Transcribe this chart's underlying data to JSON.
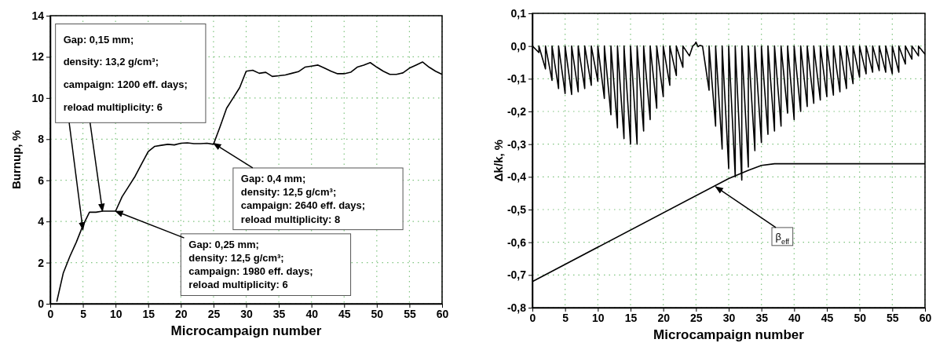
{
  "chart_data": [
    {
      "type": "line",
      "xlabel": "Microcampaign number",
      "ylabel": "Burnup, %",
      "xlim": [
        0,
        60
      ],
      "ylim": [
        0,
        14
      ],
      "xticks": [
        0,
        5,
        10,
        15,
        20,
        25,
        30,
        35,
        40,
        45,
        50,
        55,
        60
      ],
      "yticks": [
        0,
        2,
        4,
        6,
        8,
        10,
        12,
        14
      ],
      "grid": true,
      "marker": "none",
      "line_style": "solid",
      "series": [
        {
          "color": "#000000",
          "x": [
            1,
            2,
            3,
            4,
            5,
            6,
            7,
            8,
            9,
            10,
            11,
            12,
            13,
            14,
            15,
            16,
            17,
            18,
            19,
            20,
            21,
            22,
            23,
            24,
            25,
            26,
            27,
            28,
            29,
            30,
            31,
            32,
            33,
            34,
            35,
            36,
            37,
            38,
            39,
            40,
            41,
            42,
            43,
            44,
            45,
            46,
            47,
            48,
            49,
            50,
            51,
            52,
            53,
            54,
            55,
            56,
            57,
            58,
            59,
            60
          ],
          "values": [
            0.1,
            1.5,
            2.3,
            3.0,
            3.8,
            4.45,
            4.45,
            4.5,
            4.5,
            4.5,
            5.2,
            5.7,
            6.2,
            6.8,
            7.4,
            7.65,
            7.7,
            7.75,
            7.72,
            7.8,
            7.82,
            7.78,
            7.78,
            7.8,
            7.75,
            8.6,
            9.5,
            10.0,
            10.5,
            11.3,
            11.35,
            11.2,
            11.25,
            11.05,
            11.08,
            11.12,
            11.2,
            11.28,
            11.5,
            11.55,
            11.6,
            11.45,
            11.3,
            11.18,
            11.18,
            11.25,
            11.5,
            11.6,
            11.72,
            11.5,
            11.3,
            11.15,
            11.15,
            11.22,
            11.45,
            11.6,
            11.75,
            11.5,
            11.3,
            11.15
          ]
        }
      ],
      "annotations": [
        {
          "text": "Gap: 0,15 mm;\ndensity: 13,2 g/cm³;\ncampaign: 1200 eff. days;\nreload multiplicity: 6",
          "x": 5,
          "y": 3.6
        },
        {
          "text": "Gap: 0,4 mm;\ndensity: 12,5 g/cm³;\ncampaign: 2640 eff. days;\nreload multiplicity: 8",
          "x": 25,
          "y": 7.8
        },
        {
          "text": "Gap: 0,25 mm;\ndensity: 12,5 g/cm³;\ncampaign: 1980 eff. days;\nreload multiplicity: 6",
          "x": 10,
          "y": 4.5
        }
      ]
    },
    {
      "type": "line",
      "xlabel": "Microcampaign number",
      "ylabel": "Δk/k, %",
      "xlim": [
        0,
        60
      ],
      "ylim": [
        -0.8,
        0.1
      ],
      "xticks": [
        0,
        5,
        10,
        15,
        20,
        25,
        30,
        35,
        40,
        45,
        50,
        55,
        60
      ],
      "yticks": [
        {
          "value": -0.8,
          "label": "-0,8"
        },
        {
          "value": -0.7,
          "label": "-0,7"
        },
        {
          "value": -0.6,
          "label": "-0,6"
        },
        {
          "value": -0.5,
          "label": "-0,5"
        },
        {
          "value": -0.4,
          "label": "-0,4"
        },
        {
          "value": -0.3,
          "label": "-0,3"
        },
        {
          "value": -0.2,
          "label": "-0,2"
        },
        {
          "value": -0.1,
          "label": "-0,1"
        },
        {
          "value": 0,
          "label": "0,0"
        },
        {
          "value": 0.1,
          "label": "0,1"
        }
      ],
      "grid": true,
      "marker": "none",
      "line_style": "solid",
      "series": [
        {
          "color": "#000000",
          "x": [
            0,
            1,
            1,
            2,
            2,
            3,
            3,
            4,
            4,
            5,
            5,
            6,
            6,
            7,
            7,
            8,
            8,
            9,
            9,
            10,
            10,
            11,
            11,
            12,
            12,
            13,
            13,
            14,
            14,
            15,
            15,
            16,
            16,
            17,
            17,
            18,
            18,
            19,
            19,
            20,
            20,
            21,
            21,
            22,
            22,
            23,
            23,
            24,
            24.5,
            24.8,
            25,
            25.3,
            25.6,
            26,
            27,
            27,
            28,
            28,
            29,
            29,
            30,
            30,
            31,
            31,
            32,
            32,
            33,
            33,
            34,
            34,
            35,
            35,
            36,
            36,
            37,
            37,
            38,
            38,
            39,
            39,
            40,
            40,
            41,
            41,
            42,
            42,
            43,
            43,
            44,
            44,
            45,
            45,
            46,
            46,
            47,
            47,
            48,
            48,
            49,
            49,
            50,
            50,
            51,
            51,
            52,
            52,
            53,
            53,
            54,
            54,
            55,
            55,
            56,
            56,
            57,
            57,
            58,
            58,
            59,
            59,
            60
          ],
          "values": [
            0,
            -0.02,
            0,
            -0.07,
            0,
            -0.105,
            0,
            -0.13,
            0,
            -0.145,
            0,
            -0.148,
            0,
            -0.14,
            0,
            -0.13,
            0,
            -0.12,
            0,
            -0.108,
            0,
            -0.16,
            0,
            -0.21,
            0,
            -0.25,
            0,
            -0.283,
            0,
            -0.3,
            0,
            -0.3,
            0,
            -0.26,
            0,
            -0.225,
            0,
            -0.19,
            0,
            -0.155,
            0,
            -0.12,
            0,
            -0.09,
            0,
            -0.065,
            0,
            -0.03,
            0,
            0.005,
            0.012,
            -0.002,
            0.002,
            0,
            -0.135,
            0,
            -0.245,
            0,
            -0.315,
            0,
            -0.375,
            0,
            -0.4,
            0,
            -0.41,
            0,
            -0.37,
            0,
            -0.32,
            0,
            -0.295,
            0,
            -0.27,
            0,
            -0.26,
            0,
            -0.245,
            0,
            -0.205,
            0,
            -0.225,
            0,
            -0.2,
            0,
            -0.185,
            0,
            -0.175,
            0,
            -0.165,
            0,
            -0.155,
            0,
            -0.15,
            0,
            -0.14,
            0,
            -0.13,
            0,
            -0.115,
            0,
            -0.095,
            0,
            -0.085,
            0,
            -0.08,
            0,
            -0.075,
            0,
            -0.08,
            0,
            -0.085,
            0,
            -0.08,
            0,
            -0.055,
            0,
            -0.04,
            0,
            -0.03,
            0,
            -0.025
          ]
        },
        {
          "color": "#000000",
          "x": [
            0,
            30,
            33,
            35,
            37,
            60
          ],
          "values": [
            -0.72,
            -0.405,
            -0.38,
            -0.365,
            -0.36,
            -0.36
          ]
        }
      ],
      "annotations": [
        {
          "text": "β$_{eff}$",
          "x": 28,
          "y": -0.43
        }
      ]
    }
  ]
}
